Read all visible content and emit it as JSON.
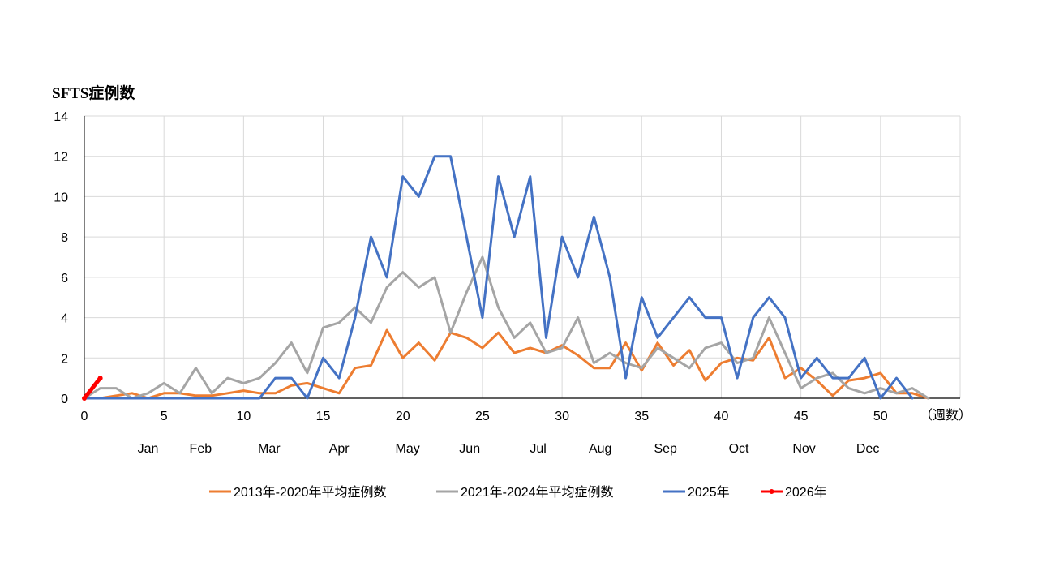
{
  "chart_data": {
    "type": "line",
    "title": "SFTS症例数",
    "xlabel": "（週数）",
    "ylabel": "",
    "xlim": [
      0,
      55
    ],
    "ylim": [
      0,
      14
    ],
    "xticks": [
      0,
      5,
      10,
      15,
      20,
      25,
      30,
      35,
      40,
      45,
      50
    ],
    "yticks": [
      0,
      2,
      4,
      6,
      8,
      10,
      12,
      14
    ],
    "grid": true,
    "legend_position": "bottom",
    "month_labels": [
      {
        "label": "Jan",
        "week": 4.0
      },
      {
        "label": "Feb",
        "week": 7.3
      },
      {
        "label": "Mar",
        "week": 11.6
      },
      {
        "label": "Apr",
        "week": 16.0
      },
      {
        "label": "May",
        "week": 20.3
      },
      {
        "label": "Jun",
        "week": 24.2
      },
      {
        "label": "Jul",
        "week": 28.5
      },
      {
        "label": "Aug",
        "week": 32.4
      },
      {
        "label": "Sep",
        "week": 36.5
      },
      {
        "label": "Oct",
        "week": 41.1
      },
      {
        "label": "Nov",
        "week": 45.2
      },
      {
        "label": "Dec",
        "week": 49.2
      }
    ],
    "series": [
      {
        "name": "2013年-2020年平均症例数",
        "color": "#ED7D31",
        "x_start": 0,
        "values": [
          0,
          0,
          0.13,
          0.25,
          0,
          0.25,
          0.25,
          0.13,
          0.13,
          0.25,
          0.38,
          0.25,
          0.25,
          0.63,
          0.75,
          0.5,
          0.25,
          1.5,
          1.63,
          3.38,
          2,
          2.75,
          1.88,
          3.25,
          3,
          2.5,
          3.25,
          2.25,
          2.5,
          2.25,
          2.63,
          2.13,
          1.5,
          1.5,
          2.75,
          1.38,
          2.75,
          1.63,
          2.38,
          0.88,
          1.75,
          2,
          1.88,
          3,
          1,
          1.5,
          0.88,
          0.13,
          0.88,
          1,
          1.25,
          0.25,
          0.25,
          0
        ]
      },
      {
        "name": "2021年-2024年平均症例数",
        "color": "#A5A5A5",
        "x_start": 0,
        "values": [
          0,
          0.5,
          0.5,
          0,
          0.25,
          0.75,
          0.25,
          1.5,
          0.25,
          1,
          0.75,
          1,
          1.75,
          2.75,
          1.25,
          3.5,
          3.75,
          4.5,
          3.75,
          5.5,
          6.25,
          5.5,
          6,
          3.25,
          5.25,
          7,
          4.5,
          3,
          3.75,
          2.25,
          2.5,
          4,
          1.75,
          2.25,
          1.75,
          1.5,
          2.5,
          2,
          1.5,
          2.5,
          2.75,
          1.75,
          2,
          4,
          2.25,
          0.5,
          1,
          1.25,
          0.5,
          0.25,
          0.5,
          0.25,
          0.5,
          0
        ]
      },
      {
        "name": "2025年",
        "color": "#4472C4",
        "x_start": 0,
        "values": [
          0,
          0,
          0,
          0,
          0,
          0,
          0,
          0,
          0,
          0,
          0,
          0,
          1,
          1,
          0,
          2,
          1,
          4,
          8,
          6,
          11,
          10,
          12,
          12,
          8,
          4,
          11,
          8,
          11,
          3,
          8,
          6,
          9,
          6,
          1,
          5,
          3,
          4,
          5,
          4,
          4,
          1,
          4,
          5,
          4,
          1,
          2,
          1,
          1,
          2,
          0,
          1,
          0
        ]
      },
      {
        "name": "2026年",
        "color": "#FF0000",
        "x_start": 0,
        "markers": true,
        "values": [
          0,
          1
        ]
      }
    ]
  }
}
